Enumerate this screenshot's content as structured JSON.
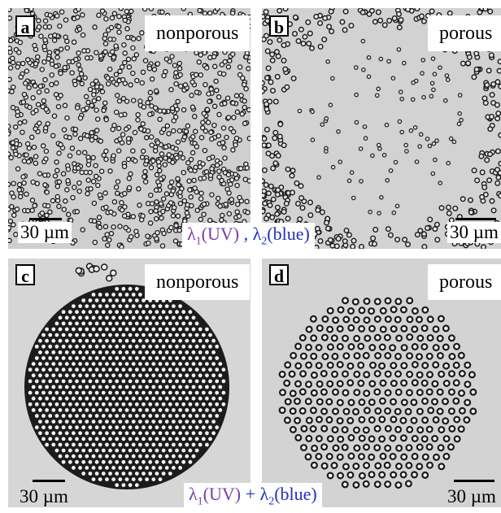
{
  "panels": {
    "a": {
      "letter": "a",
      "label": "nonporous",
      "scale": "30 µm"
    },
    "b": {
      "letter": "b",
      "label": "porous",
      "scale": "30 µm"
    },
    "c": {
      "letter": "c",
      "label": "nonporous",
      "scale": "30 µm"
    },
    "d": {
      "letter": "d",
      "label": "porous",
      "scale": "30 µm"
    }
  },
  "captions": {
    "top": {
      "uv": "λ",
      "uv_sub": "1",
      "uv_suffix": "(UV)",
      "op": " , ",
      "blue": "λ",
      "blue_sub": "2",
      "blue_suffix": "(blue)"
    },
    "bottom": {
      "uv": "λ",
      "uv_sub": "1",
      "uv_suffix": "(UV)",
      "op": " + ",
      "blue": "λ",
      "blue_sub": "2",
      "blue_suffix": "(blue)"
    }
  },
  "colors": {
    "background_gray": "#d4d4d4",
    "uv_text": "#7a3db0",
    "blue_text": "#2030c0"
  }
}
